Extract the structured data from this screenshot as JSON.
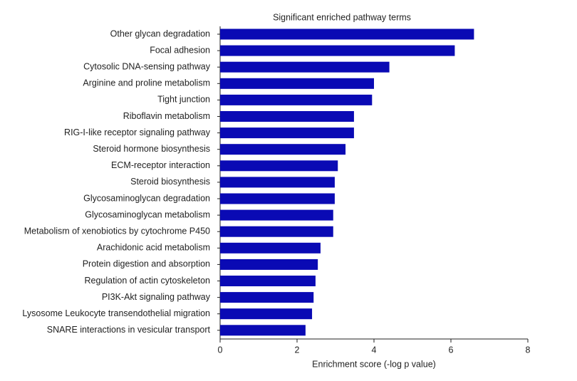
{
  "chart_data": {
    "type": "bar",
    "orientation": "horizontal",
    "title": "Significant enriched pathway terms",
    "xlabel": "Enrichment score (-log p value)",
    "categories": [
      "Other glycan degradation",
      "Focal adhesion",
      "Cytosolic DNA-sensing pathway",
      "Arginine and proline metabolism",
      "Tight junction",
      "Riboflavin metabolism",
      "RIG-I-like receptor signaling pathway",
      "Steroid hormone biosynthesis",
      "ECM-receptor interaction",
      "Steroid biosynthesis",
      "Glycosaminoglycan degradation",
      "Glycosaminoglycan metabolism",
      "Metabolism of xenobiotics by cytochrome P450",
      "Arachidonic acid metabolism",
      "Protein digestion and absorption",
      "Regulation of actin cytoskeleton",
      "PI3K-Akt signaling pathway",
      "Lysosome Leukocyte transendothelial migration",
      "SNARE interactions in vesicular transport"
    ],
    "values": [
      6.6,
      6.1,
      4.4,
      4.0,
      3.95,
      3.48,
      3.48,
      3.26,
      3.06,
      2.98,
      2.98,
      2.94,
      2.94,
      2.61,
      2.54,
      2.48,
      2.43,
      2.39,
      2.22
    ],
    "color": "#0a0ab4",
    "xlim": [
      0,
      8
    ],
    "xticks": [
      0,
      2,
      4,
      6,
      8
    ],
    "grid": false
  }
}
